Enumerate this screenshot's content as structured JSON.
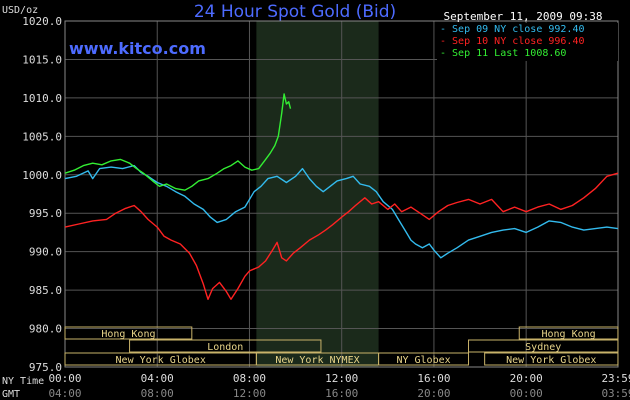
{
  "chart_data": {
    "type": "line",
    "title": "24 Hour Spot Gold (Bid)",
    "website": "www.kitco.com",
    "timestamp": "September 11, 2009 09:38",
    "y_unit_label": "USD/oz",
    "ylim": [
      975.0,
      1020.0
    ],
    "y_ticks": [
      975.0,
      980.0,
      985.0,
      990.0,
      995.0,
      1000.0,
      1005.0,
      1010.0,
      1015.0,
      1020.0
    ],
    "y_tick_labels": [
      "975.0",
      "980.0",
      "985.0",
      "990.0",
      "995.0",
      "1000.0",
      "1005.0",
      "1010.0",
      "1015.0",
      "1020.0"
    ],
    "xlim": [
      0,
      23.983
    ],
    "x_row_labels": [
      "NY Time",
      "GMT"
    ],
    "x_ticks_ny": [
      {
        "h": 0,
        "label": "00:00"
      },
      {
        "h": 4,
        "label": "04:00"
      },
      {
        "h": 8,
        "label": "08:00"
      },
      {
        "h": 12,
        "label": "12:00"
      },
      {
        "h": 16,
        "label": "16:00"
      },
      {
        "h": 20,
        "label": "20:00"
      },
      {
        "h": 23.983,
        "label": "23:59"
      }
    ],
    "x_ticks_gmt": [
      {
        "h": 0,
        "label": "04:00"
      },
      {
        "h": 4,
        "label": "08:00"
      },
      {
        "h": 8,
        "label": "12:00"
      },
      {
        "h": 12,
        "label": "16:00"
      },
      {
        "h": 16,
        "label": "20:00"
      },
      {
        "h": 20,
        "label": "00:00"
      },
      {
        "h": 23.983,
        "label": "03:59"
      }
    ],
    "grid": true,
    "highlight_range_hours": [
      8.3,
      13.6
    ],
    "legend_position": "top-right",
    "series": [
      {
        "name": "Sep 09 NY close 992.40",
        "color": "#33bbee",
        "points": [
          [
            0,
            999.5
          ],
          [
            0.5,
            999.8
          ],
          [
            1.0,
            1000.5
          ],
          [
            1.2,
            999.5
          ],
          [
            1.5,
            1000.8
          ],
          [
            2.0,
            1001.0
          ],
          [
            2.5,
            1000.8
          ],
          [
            3.0,
            1001.2
          ],
          [
            3.3,
            1000.3
          ],
          [
            3.6,
            999.8
          ],
          [
            4.0,
            999.0
          ],
          [
            4.4,
            998.5
          ],
          [
            4.8,
            997.8
          ],
          [
            5.2,
            997.2
          ],
          [
            5.6,
            996.2
          ],
          [
            6.0,
            995.5
          ],
          [
            6.3,
            994.5
          ],
          [
            6.6,
            993.8
          ],
          [
            7.0,
            994.2
          ],
          [
            7.4,
            995.2
          ],
          [
            7.8,
            995.8
          ],
          [
            8.2,
            997.8
          ],
          [
            8.5,
            998.5
          ],
          [
            8.8,
            999.5
          ],
          [
            9.2,
            999.8
          ],
          [
            9.6,
            999.0
          ],
          [
            10.0,
            999.8
          ],
          [
            10.3,
            1000.8
          ],
          [
            10.6,
            999.5
          ],
          [
            10.9,
            998.5
          ],
          [
            11.2,
            997.8
          ],
          [
            11.5,
            998.5
          ],
          [
            11.8,
            999.2
          ],
          [
            12.2,
            999.5
          ],
          [
            12.5,
            999.8
          ],
          [
            12.8,
            998.8
          ],
          [
            13.2,
            998.5
          ],
          [
            13.5,
            997.8
          ],
          [
            13.8,
            996.5
          ],
          [
            14.2,
            995.5
          ],
          [
            14.5,
            994.0
          ],
          [
            14.8,
            992.5
          ],
          [
            15.0,
            991.5
          ],
          [
            15.2,
            991.0
          ],
          [
            15.5,
            990.5
          ],
          [
            15.8,
            991.0
          ],
          [
            16.0,
            990.2
          ],
          [
            16.3,
            989.2
          ],
          [
            16.6,
            989.8
          ],
          [
            17.0,
            990.5
          ],
          [
            17.5,
            991.5
          ],
          [
            18.0,
            992.0
          ],
          [
            18.5,
            992.5
          ],
          [
            19.0,
            992.8
          ],
          [
            19.5,
            993.0
          ],
          [
            20.0,
            992.5
          ],
          [
            20.5,
            993.2
          ],
          [
            21.0,
            994.0
          ],
          [
            21.5,
            993.8
          ],
          [
            22.0,
            993.2
          ],
          [
            22.5,
            992.8
          ],
          [
            23.0,
            993.0
          ],
          [
            23.5,
            993.2
          ],
          [
            23.98,
            993.0
          ]
        ]
      },
      {
        "name": "Sep 10 NY close 996.40",
        "color": "#ff2222",
        "points": [
          [
            0,
            993.2
          ],
          [
            0.6,
            993.6
          ],
          [
            1.2,
            994.0
          ],
          [
            1.8,
            994.2
          ],
          [
            2.2,
            995.0
          ],
          [
            2.6,
            995.6
          ],
          [
            3.0,
            996.0
          ],
          [
            3.3,
            995.2
          ],
          [
            3.6,
            994.2
          ],
          [
            4.0,
            993.2
          ],
          [
            4.3,
            992.0
          ],
          [
            4.6,
            991.5
          ],
          [
            5.0,
            991.0
          ],
          [
            5.4,
            989.8
          ],
          [
            5.7,
            988.2
          ],
          [
            6.0,
            985.8
          ],
          [
            6.2,
            983.8
          ],
          [
            6.4,
            985.2
          ],
          [
            6.7,
            986.0
          ],
          [
            7.0,
            984.8
          ],
          [
            7.2,
            983.8
          ],
          [
            7.5,
            985.2
          ],
          [
            7.8,
            986.8
          ],
          [
            8.0,
            987.5
          ],
          [
            8.4,
            988.0
          ],
          [
            8.7,
            988.8
          ],
          [
            9.0,
            990.2
          ],
          [
            9.2,
            991.2
          ],
          [
            9.4,
            989.2
          ],
          [
            9.6,
            988.8
          ],
          [
            9.9,
            989.8
          ],
          [
            10.2,
            990.5
          ],
          [
            10.6,
            991.5
          ],
          [
            11.0,
            992.2
          ],
          [
            11.3,
            992.8
          ],
          [
            11.6,
            993.5
          ],
          [
            12.0,
            994.5
          ],
          [
            12.3,
            995.2
          ],
          [
            12.6,
            996.0
          ],
          [
            13.0,
            997.0
          ],
          [
            13.3,
            996.2
          ],
          [
            13.6,
            996.5
          ],
          [
            14.0,
            995.5
          ],
          [
            14.3,
            996.2
          ],
          [
            14.6,
            995.2
          ],
          [
            15.0,
            995.8
          ],
          [
            15.4,
            995.0
          ],
          [
            15.8,
            994.2
          ],
          [
            16.2,
            995.2
          ],
          [
            16.6,
            996.0
          ],
          [
            17.0,
            996.4
          ],
          [
            17.5,
            996.8
          ],
          [
            18.0,
            996.2
          ],
          [
            18.5,
            996.8
          ],
          [
            19.0,
            995.2
          ],
          [
            19.5,
            995.8
          ],
          [
            20.0,
            995.2
          ],
          [
            20.5,
            995.8
          ],
          [
            21.0,
            996.2
          ],
          [
            21.5,
            995.5
          ],
          [
            22.0,
            996.0
          ],
          [
            22.5,
            997.0
          ],
          [
            23.0,
            998.2
          ],
          [
            23.5,
            999.8
          ],
          [
            23.98,
            1000.2
          ]
        ]
      },
      {
        "name": "Sep 11 Last 1008.60",
        "color": "#33ee33",
        "points": [
          [
            0,
            1000.2
          ],
          [
            0.4,
            1000.6
          ],
          [
            0.8,
            1001.2
          ],
          [
            1.2,
            1001.5
          ],
          [
            1.6,
            1001.3
          ],
          [
            2.0,
            1001.8
          ],
          [
            2.4,
            1002.0
          ],
          [
            2.8,
            1001.5
          ],
          [
            3.1,
            1000.8
          ],
          [
            3.4,
            1000.2
          ],
          [
            3.8,
            999.2
          ],
          [
            4.1,
            998.5
          ],
          [
            4.4,
            998.8
          ],
          [
            4.8,
            998.2
          ],
          [
            5.2,
            998.0
          ],
          [
            5.5,
            998.5
          ],
          [
            5.8,
            999.2
          ],
          [
            6.2,
            999.5
          ],
          [
            6.6,
            1000.2
          ],
          [
            6.9,
            1000.8
          ],
          [
            7.2,
            1001.2
          ],
          [
            7.5,
            1001.8
          ],
          [
            7.8,
            1001.0
          ],
          [
            8.1,
            1000.6
          ],
          [
            8.4,
            1000.8
          ],
          [
            8.7,
            1002.0
          ],
          [
            8.9,
            1002.8
          ],
          [
            9.1,
            1003.8
          ],
          [
            9.25,
            1005.0
          ],
          [
            9.4,
            1008.0
          ],
          [
            9.5,
            1010.5
          ],
          [
            9.6,
            1009.2
          ],
          [
            9.7,
            1009.5
          ],
          [
            9.78,
            1008.6
          ]
        ]
      }
    ],
    "market_sessions": [
      {
        "row": 0,
        "label": "Hong Kong",
        "start": 0,
        "end": 5.5
      },
      {
        "row": 0,
        "label": "Hong Kong",
        "start": 19.7,
        "end": 23.98
      },
      {
        "row": 1,
        "label": "London",
        "start": 2.8,
        "end": 11.1
      },
      {
        "row": 1,
        "label": "Sydney",
        "start": 17.5,
        "end": 23.98
      },
      {
        "row": 2,
        "label": "New York Globex",
        "start": 0,
        "end": 8.3
      },
      {
        "row": 2,
        "label": "New York NYMEX",
        "start": 8.3,
        "end": 13.6
      },
      {
        "row": 2,
        "label": "NY Globex",
        "start": 13.6,
        "end": 17.5
      },
      {
        "row": 2,
        "label": "New York Globex",
        "start": 18.2,
        "end": 23.98
      }
    ]
  }
}
